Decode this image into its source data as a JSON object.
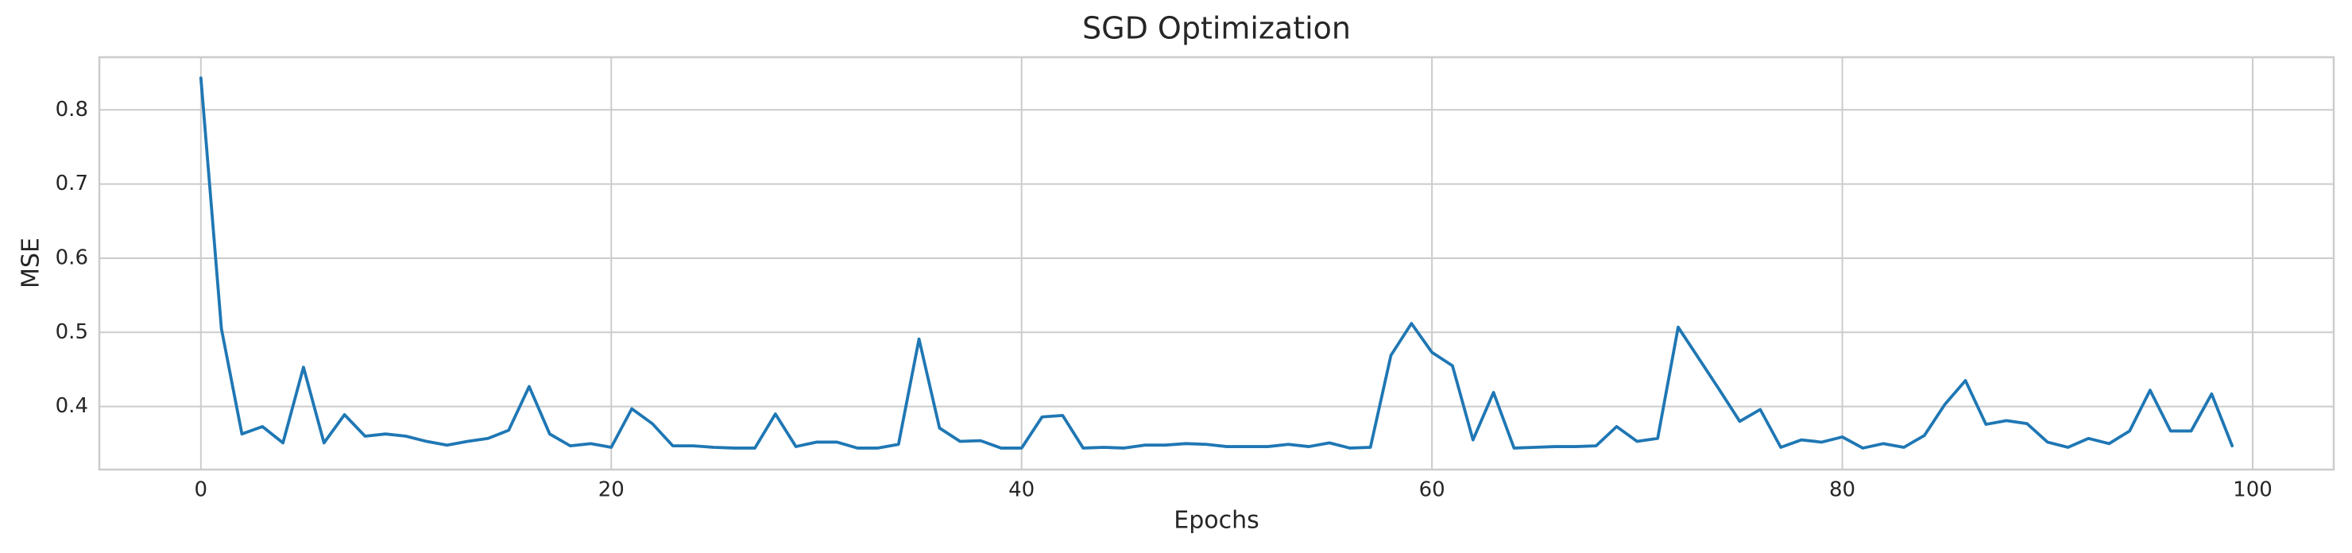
{
  "chart_data": {
    "type": "line",
    "title": "SGD Optimization",
    "x_label": "Epochs",
    "y_label": "MSE",
    "x": [
      0,
      1,
      2,
      3,
      4,
      5,
      6,
      7,
      8,
      9,
      10,
      11,
      12,
      13,
      14,
      15,
      16,
      17,
      18,
      19,
      20,
      21,
      22,
      23,
      24,
      25,
      26,
      27,
      28,
      29,
      30,
      31,
      32,
      33,
      34,
      35,
      36,
      37,
      38,
      39,
      40,
      41,
      42,
      43,
      44,
      45,
      46,
      47,
      48,
      49,
      50,
      51,
      52,
      53,
      54,
      55,
      56,
      57,
      58,
      59,
      60,
      61,
      62,
      63,
      64,
      65,
      66,
      67,
      68,
      69,
      70,
      71,
      72,
      73,
      74,
      75,
      76,
      77,
      78,
      79,
      80,
      81,
      82,
      83,
      84,
      85,
      86,
      87,
      88,
      89,
      90,
      91,
      92,
      93,
      94,
      95,
      96,
      97,
      98,
      99
    ],
    "values": [
      0.843,
      0.505,
      0.363,
      0.373,
      0.351,
      0.453,
      0.351,
      0.389,
      0.36,
      0.363,
      0.36,
      0.353,
      0.348,
      0.353,
      0.357,
      0.368,
      0.427,
      0.363,
      0.347,
      0.35,
      0.345,
      0.397,
      0.377,
      0.347,
      0.347,
      0.345,
      0.344,
      0.344,
      0.39,
      0.346,
      0.352,
      0.352,
      0.344,
      0.344,
      0.349,
      0.491,
      0.371,
      0.353,
      0.354,
      0.344,
      0.344,
      0.386,
      0.388,
      0.344,
      0.345,
      0.344,
      0.348,
      0.348,
      0.35,
      0.349,
      0.346,
      0.346,
      0.346,
      0.349,
      0.346,
      0.351,
      0.344,
      0.345,
      0.469,
      0.512,
      0.473,
      0.455,
      0.355,
      0.419,
      0.344,
      0.345,
      0.346,
      0.346,
      0.347,
      0.373,
      0.353,
      0.357,
      0.507,
      0.465,
      0.423,
      0.38,
      0.396,
      0.345,
      0.355,
      0.352,
      0.359,
      0.344,
      0.35,
      0.345,
      0.361,
      0.403,
      0.435,
      0.376,
      0.381,
      0.377,
      0.352,
      0.345,
      0.357,
      0.35,
      0.367,
      0.422,
      0.367,
      0.367,
      0.417,
      0.347
    ],
    "color": "#1f77b4",
    "grid": true,
    "xlim": [
      -4.95,
      103.95
    ],
    "xticks": [
      0,
      20,
      40,
      60,
      80,
      100
    ],
    "ylim": [
      0.315,
      0.871
    ],
    "yticks": [
      0.4,
      0.5,
      0.6,
      0.7,
      0.8
    ]
  }
}
